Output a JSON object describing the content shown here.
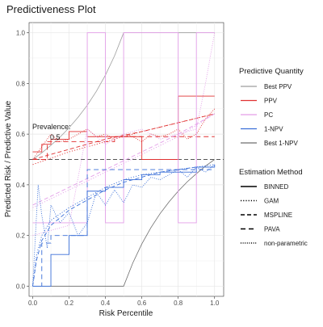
{
  "chart_data": {
    "type": "line",
    "title": "Predictiveness Plot",
    "xlabel": "Risk Percentile",
    "ylabel": "Predicted Risk / Predictive Value",
    "xlim": [
      -0.02,
      1.05
    ],
    "ylim": [
      -0.04,
      1.04
    ],
    "xticks": [
      0.0,
      0.2,
      0.4,
      0.6,
      0.8,
      1.0
    ],
    "xtick_labels": [
      "0.0",
      "0.2",
      "0.4",
      "0.6",
      "0.8",
      "1.0"
    ],
    "yticks": [
      0.0,
      0.2,
      0.4,
      0.6,
      0.8,
      1.0
    ],
    "ytick_labels": [
      "0.0",
      "0.2",
      "0.4",
      "0.6",
      "0.8",
      "1.0"
    ],
    "grid": true,
    "prevalence": 0.5,
    "annotation": {
      "line1": "Prevalence:",
      "line2": "0.5"
    },
    "legend_color": {
      "title": "Predictive Quantity",
      "items": [
        {
          "label": "Best PPV",
          "color": "#9e9e9e"
        },
        {
          "label": "PPV",
          "color": "#e03131"
        },
        {
          "label": "PC",
          "color": "#e39ee8"
        },
        {
          "label": "1-NPV",
          "color": "#3a6fd8"
        },
        {
          "label": "Best 1-NPV",
          "color": "#6e6e6e"
        }
      ]
    },
    "legend_linetype": {
      "title": "Estimation Method",
      "items": [
        {
          "label": "BINNED",
          "dash": "none"
        },
        {
          "label": "GAM",
          "dash": "1.2,2"
        },
        {
          "label": "MSPLINE",
          "dash": "5,3"
        },
        {
          "label": "PAVA",
          "dash": "6,4"
        },
        {
          "label": "non-parametric",
          "dash": "1,1.6"
        }
      ]
    },
    "series": [
      {
        "name": "Best PPV",
        "method": "BINNED",
        "color": "#9e9e9e",
        "dash": "none",
        "width": 0.8,
        "x": [
          0,
          0.05,
          0.1,
          0.15,
          0.2,
          0.25,
          0.3,
          0.35,
          0.4,
          0.45,
          0.5,
          1.0
        ],
        "y": [
          0.5,
          0.526,
          0.556,
          0.588,
          0.625,
          0.667,
          0.714,
          0.769,
          0.833,
          0.909,
          1.0,
          1.0
        ]
      },
      {
        "name": "Best 1-NPV",
        "method": "BINNED",
        "color": "#6e6e6e",
        "dash": "none",
        "width": 0.8,
        "x": [
          0,
          0.5,
          0.55,
          0.6,
          0.65,
          0.7,
          0.75,
          0.8,
          0.85,
          0.9,
          0.95,
          1.0
        ],
        "y": [
          0,
          0,
          0.091,
          0.167,
          0.231,
          0.286,
          0.333,
          0.375,
          0.412,
          0.444,
          0.474,
          0.5
        ]
      },
      {
        "name": "PPV",
        "method": "BINNED",
        "color": "#e03131",
        "dash": "none",
        "width": 0.9,
        "step": true,
        "x": [
          0,
          0.05,
          0.1,
          0.2,
          0.3,
          0.4,
          0.5,
          0.6,
          0.7,
          0.8,
          0.9,
          1.0
        ],
        "y": [
          0.53,
          0.56,
          0.58,
          0.61,
          0.59,
          0.59,
          0.59,
          0.5,
          0.5,
          0.75,
          0.75,
          0.75
        ]
      },
      {
        "name": "PPV",
        "method": "MSPLINE",
        "color": "#e03131",
        "dash": "5,3",
        "width": 0.9,
        "x": [
          0,
          0.2,
          0.4,
          0.6,
          0.8,
          1.0
        ],
        "y": [
          0.5,
          0.54,
          0.58,
          0.61,
          0.645,
          0.68
        ]
      },
      {
        "name": "PPV",
        "method": "GAM",
        "color": "#e03131",
        "dash": "1.2,2",
        "width": 0.9,
        "x": [
          0,
          0.2,
          0.4,
          0.6,
          0.8,
          1.0
        ],
        "y": [
          0.48,
          0.53,
          0.57,
          0.61,
          0.645,
          0.68
        ]
      },
      {
        "name": "PPV",
        "method": "PAVA",
        "color": "#e03131",
        "dash": "6,4",
        "width": 0.9,
        "step": true,
        "x": [
          0,
          0.08,
          0.45,
          1.0
        ],
        "y": [
          0.5,
          0.57,
          0.59,
          0.59
        ]
      },
      {
        "name": "PPV",
        "method": "non-parametric",
        "color": "#e03131",
        "dash": "1,1.6",
        "width": 0.9,
        "x": [
          0,
          0.05,
          0.1,
          0.15,
          0.2,
          0.25,
          0.3,
          0.35,
          0.4,
          0.45,
          0.5,
          0.55,
          0.6,
          0.65,
          0.7,
          0.75,
          0.8,
          0.85,
          0.9,
          0.95,
          1.0
        ],
        "y": [
          0.5,
          0.55,
          0.6,
          0.57,
          0.58,
          0.6,
          0.62,
          0.59,
          0.6,
          0.58,
          0.6,
          0.59,
          0.57,
          0.6,
          0.59,
          0.6,
          0.62,
          0.58,
          0.6,
          0.66,
          0.7
        ]
      },
      {
        "name": "PC",
        "method": "BINNED",
        "color": "#e39ee8",
        "dash": "none",
        "width": 0.9,
        "step": true,
        "x": [
          0,
          0.1,
          0.2,
          0.3,
          0.4,
          0.5,
          0.6,
          0.7,
          0.8,
          0.9,
          1.0
        ],
        "y": [
          0.25,
          0.25,
          0.25,
          1.0,
          0.25,
          1.0,
          1.0,
          1.0,
          0.25,
          1.0,
          1.0
        ]
      },
      {
        "name": "PC",
        "method": "MSPLINE",
        "color": "#e39ee8",
        "dash": "5,3",
        "width": 0.9,
        "x": [
          0,
          0.2,
          0.4,
          0.6,
          0.8,
          1.0
        ],
        "y": [
          0.32,
          0.39,
          0.46,
          0.53,
          0.6,
          0.68
        ]
      },
      {
        "name": "PC",
        "method": "GAM",
        "color": "#e39ee8",
        "dash": "1.2,2",
        "width": 0.9,
        "x": [
          0,
          0.2,
          0.4,
          0.6,
          0.8,
          1.0
        ],
        "y": [
          0.31,
          0.38,
          0.45,
          0.52,
          0.59,
          0.68
        ]
      },
      {
        "name": "PC",
        "method": "non-parametric",
        "color": "#e39ee8",
        "dash": "1,1.6",
        "width": 0.9,
        "x": [
          0,
          0.1,
          0.2,
          0.3,
          0.4,
          0.5,
          0.6,
          0.7,
          0.8,
          0.9,
          0.95,
          1.0
        ],
        "y": [
          0.2,
          0.22,
          0.24,
          0.62,
          0.56,
          0.6,
          0.62,
          0.58,
          0.6,
          0.62,
          0.8,
          1.0
        ]
      },
      {
        "name": "1-NPV",
        "method": "BINNED",
        "color": "#3a6fd8",
        "dash": "none",
        "width": 0.9,
        "step": true,
        "x": [
          0,
          0.1,
          0.2,
          0.3,
          0.4,
          0.5,
          0.6,
          0.7,
          0.8,
          0.9,
          1.0
        ],
        "y": [
          0.0,
          0.125,
          0.2,
          0.375,
          0.39,
          0.42,
          0.44,
          0.45,
          0.45,
          0.47,
          0.48
        ]
      },
      {
        "name": "1-NPV",
        "method": "MSPLINE",
        "color": "#3a6fd8",
        "dash": "5,3",
        "width": 0.9,
        "x": [
          0,
          0.02,
          0.05,
          0.1,
          0.2,
          0.3,
          0.4,
          0.5,
          0.6,
          0.7,
          0.8,
          0.9,
          1.0
        ],
        "y": [
          0.0,
          0.1,
          0.18,
          0.24,
          0.3,
          0.34,
          0.38,
          0.41,
          0.43,
          0.45,
          0.46,
          0.47,
          0.47
        ]
      },
      {
        "name": "1-NPV",
        "method": "GAM",
        "color": "#3a6fd8",
        "dash": "1.2,2",
        "width": 0.9,
        "x": [
          0,
          0.02,
          0.05,
          0.1,
          0.2,
          0.3,
          0.4,
          0.5,
          0.6,
          0.7,
          0.8,
          0.9,
          1.0
        ],
        "y": [
          0.0,
          0.12,
          0.2,
          0.26,
          0.31,
          0.35,
          0.39,
          0.42,
          0.44,
          0.45,
          0.46,
          0.47,
          0.48
        ]
      },
      {
        "name": "1-NPV",
        "method": "PAVA",
        "color": "#3a6fd8",
        "dash": "6,4",
        "width": 0.9,
        "step": true,
        "x": [
          0,
          0.05,
          0.1,
          0.3,
          1.0
        ],
        "y": [
          0.0,
          0.17,
          0.2,
          0.46,
          0.46
        ]
      },
      {
        "name": "1-NPV",
        "method": "non-parametric",
        "color": "#3a6fd8",
        "dash": "1,1.6",
        "width": 0.9,
        "x": [
          0,
          0.03,
          0.05,
          0.08,
          0.1,
          0.15,
          0.2,
          0.25,
          0.3,
          0.35,
          0.4,
          0.45,
          0.5,
          0.55,
          0.6,
          0.65,
          0.7,
          0.75,
          0.8,
          0.85,
          0.9,
          0.95,
          1.0
        ],
        "y": [
          0.0,
          0.4,
          0.28,
          0.15,
          0.32,
          0.25,
          0.29,
          0.2,
          0.25,
          0.37,
          0.32,
          0.38,
          0.33,
          0.4,
          0.39,
          0.43,
          0.42,
          0.44,
          0.46,
          0.43,
          0.47,
          0.45,
          0.48
        ]
      }
    ]
  }
}
